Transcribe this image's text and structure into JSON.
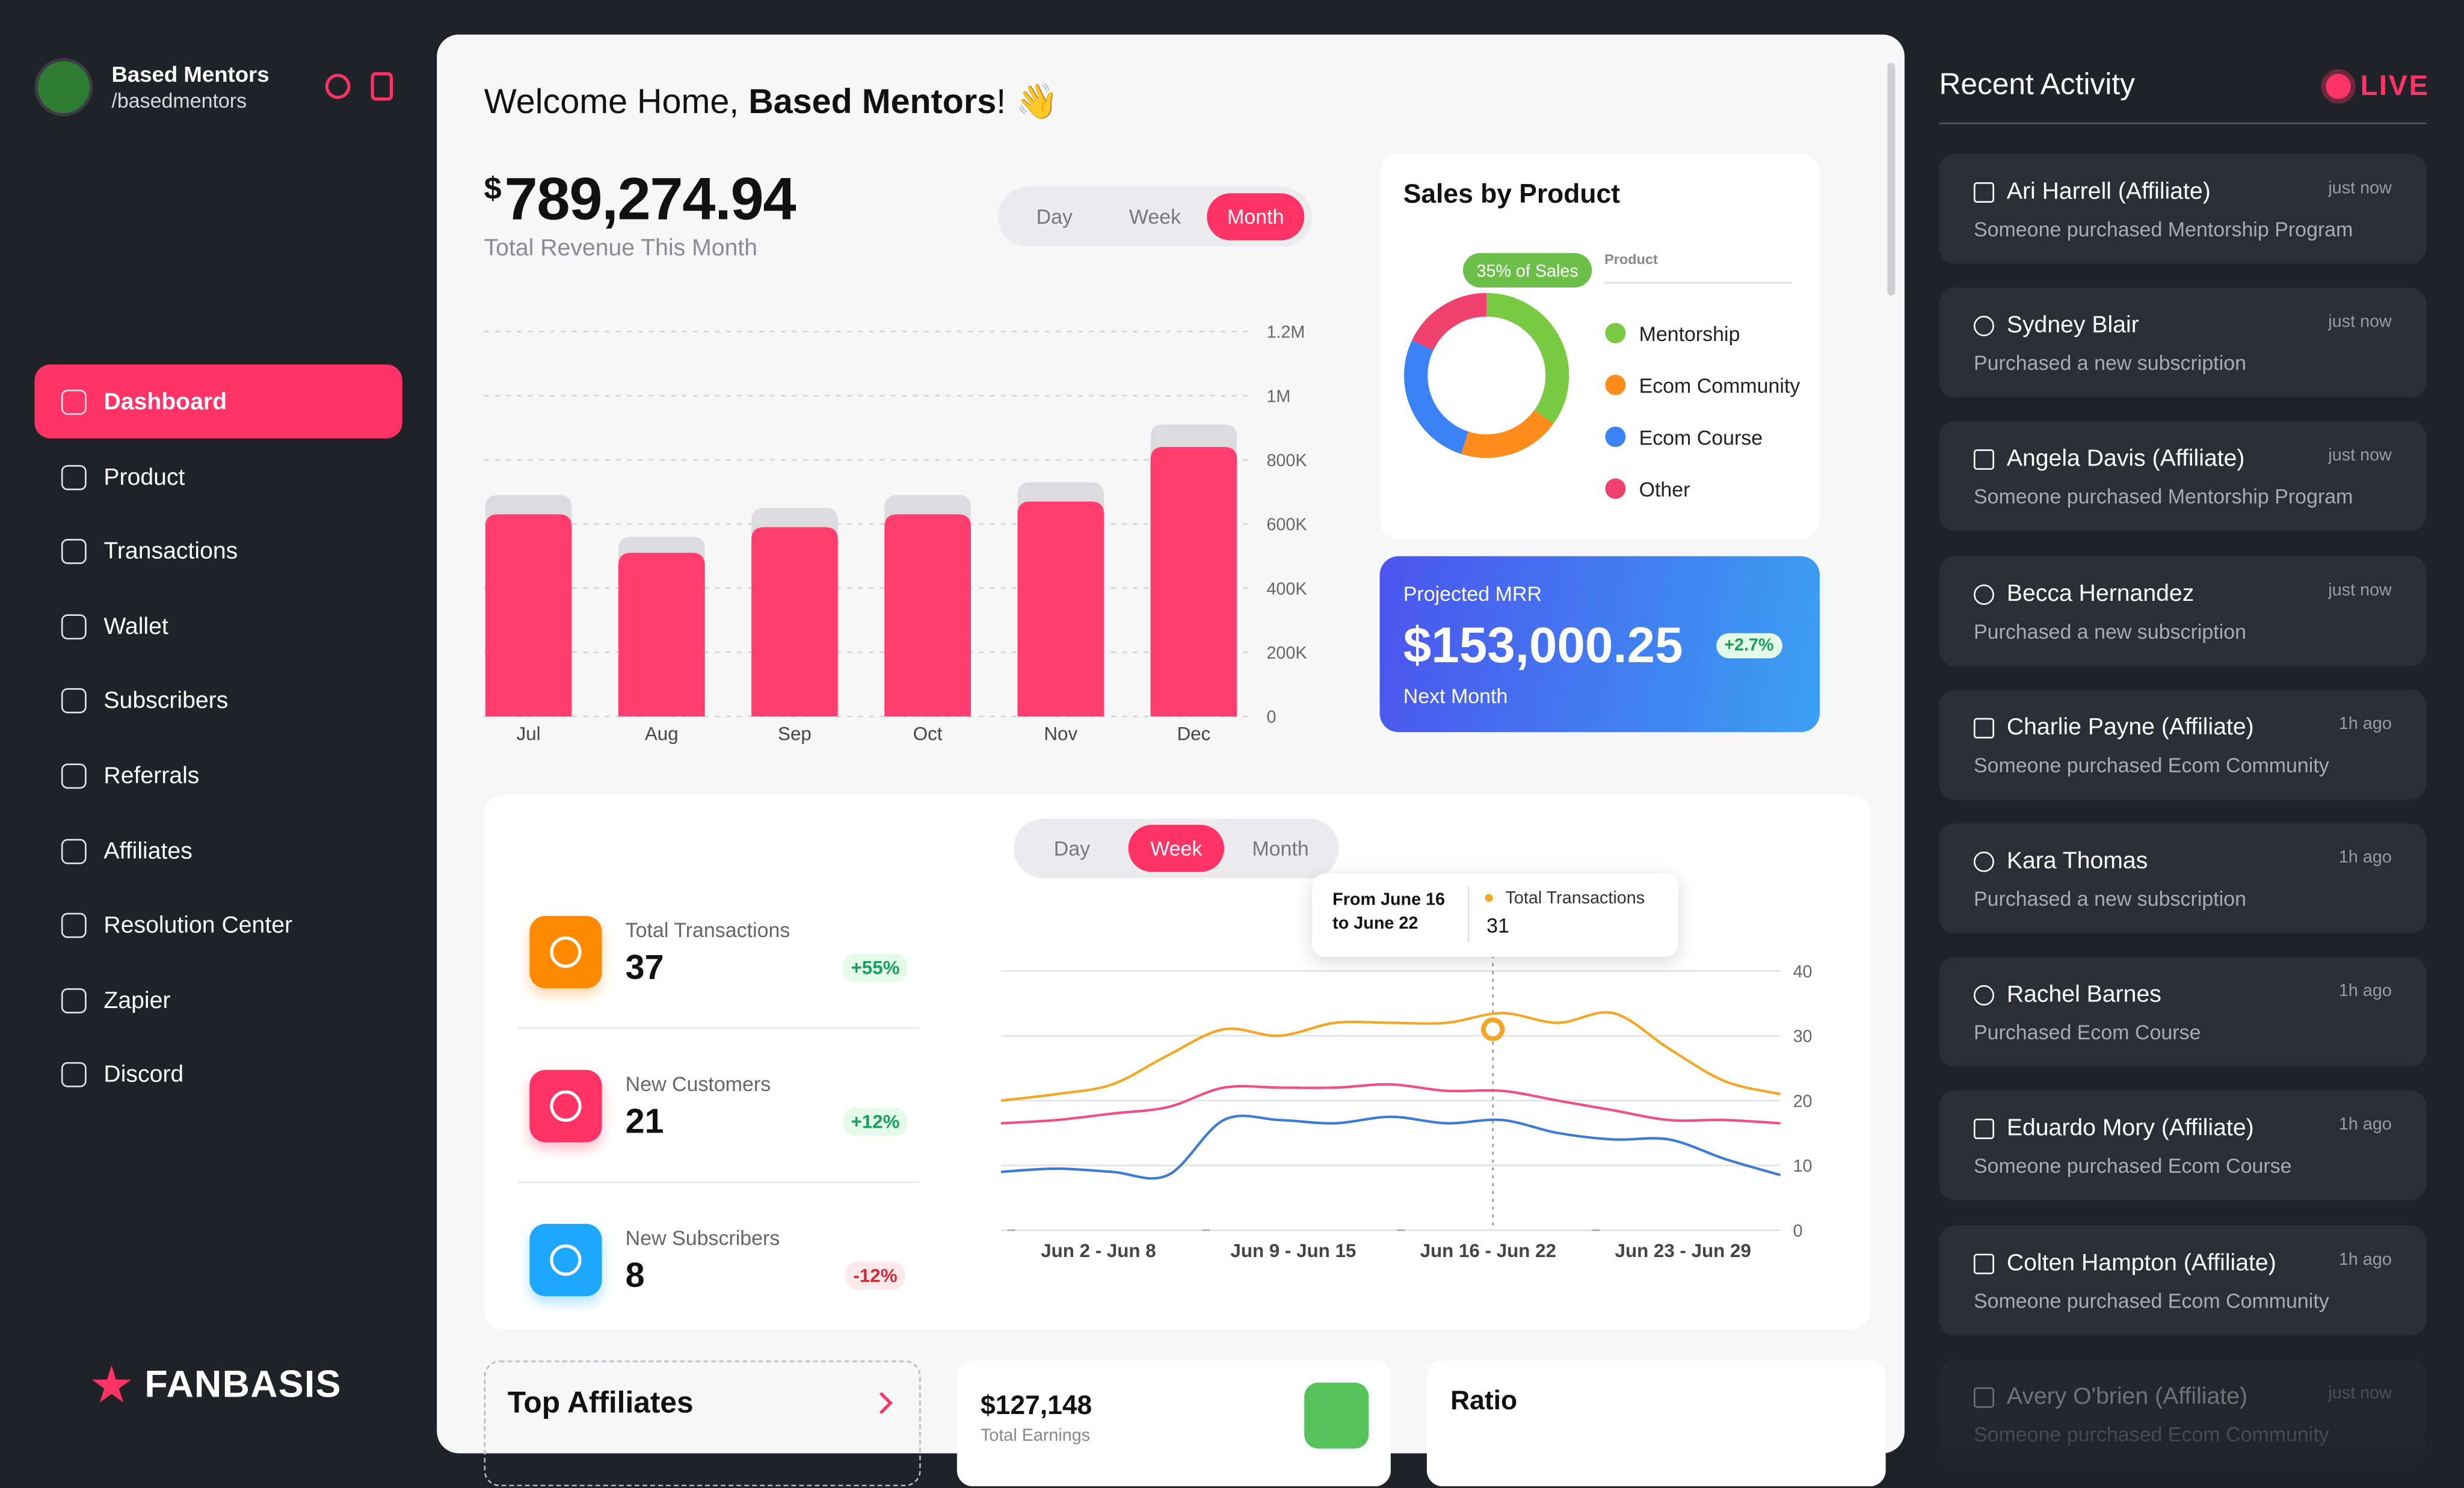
{
  "sidebar": {
    "profile": {
      "name": "Based Mentors",
      "handle": "/basedmentors"
    },
    "nav": [
      "Dashboard",
      "Product",
      "Transactions",
      "Wallet",
      "Subscribers",
      "Referrals",
      "Affiliates",
      "Resolution Center",
      "Zapier",
      "Discord"
    ],
    "brand": "FANBASIS"
  },
  "main": {
    "greeting": {
      "text": "Welcome Home, ",
      "name": "Based Mentors",
      "end": "! 👋"
    },
    "revenue": {
      "currency": "$",
      "amount": "789,274.94",
      "label": "Total Revenue This Month",
      "periods": [
        "Day",
        "Week",
        "Month"
      ]
    },
    "revenue_chart": {
      "type": "bar",
      "categories": [
        "Jul",
        "Aug",
        "Sep",
        "Oct",
        "Nov",
        "Dec"
      ],
      "series": [
        {
          "color": "#dcdcdf",
          "values": [
            690000,
            560000,
            650000,
            690000,
            730000,
            910000
          ]
        },
        {
          "color": "#ff3d6e",
          "values": [
            630000,
            510000,
            590000,
            630000,
            670000,
            840000
          ]
        }
      ],
      "ylim": [
        0,
        1200000
      ],
      "yticks": [
        0,
        {
          "value": 200000,
          "label": "200K"
        },
        {
          "value": 400000,
          "label": "400K"
        },
        {
          "value": 600000,
          "label": "600K"
        },
        {
          "value": 800000,
          "label": "800K"
        },
        {
          "value": 1000000,
          "label": "1M"
        },
        {
          "value": 1200000,
          "label": "1.2M"
        }
      ],
      "grid": true
    },
    "sales": {
      "title": "Sales by Product",
      "chart": {
        "type": "donut",
        "categories": [
          "Mentorship",
          "Ecom Community",
          "Ecom Course",
          "Other"
        ],
        "values": [
          35,
          20,
          27,
          18
        ],
        "colors": [
          "#7ac943",
          "#ff8c1a",
          "#3b82f6",
          "#f0406e"
        ],
        "annotation": "35% of Sales",
        "legend_title": "Product"
      }
    },
    "mrr": {
      "title": "Projected MRR",
      "amount": "$153,000.25",
      "change": "+2.7%",
      "period": "Next Month"
    },
    "activity": {
      "periods": [
        "Day",
        "Week",
        "Month"
      ],
      "stats": [
        {
          "label": "Total Transactions",
          "value": 37,
          "change": "+55%"
        },
        {
          "label": "New Customers",
          "value": 21,
          "change": "+12%"
        },
        {
          "label": "New Subscribers",
          "value": 8,
          "change": "-12%"
        }
      ],
      "chart": {
        "type": "line",
        "x": [
          0,
          2,
          4,
          6,
          8,
          10,
          12,
          14,
          16,
          18,
          20,
          22,
          24,
          26,
          28
        ],
        "xlim": [
          0,
          28
        ],
        "xticks": [
          {
            "value": 3.5,
            "label": "Jun 2 - Jun 8"
          },
          {
            "value": 10.5,
            "label": "Jun 9 - Jun 15"
          },
          {
            "value": 17.5,
            "label": "Jun 16 - Jun 22"
          },
          {
            "value": 24.5,
            "label": "Jun 23 - Jun 29"
          }
        ],
        "ylim": [
          0,
          40
        ],
        "yticks": [
          0,
          10,
          20,
          30,
          40
        ],
        "grid": true,
        "series": [
          {
            "color": "#f5a623",
            "values": [
              20,
              21,
              22.5,
              27,
              31,
              30,
              32,
              32,
              32,
              33.5,
              32,
              33.5,
              28,
              23,
              21
            ]
          },
          {
            "color": "#ef4f86",
            "values": [
              16.5,
              17,
              18,
              19,
              22,
              22,
              22,
              22.5,
              21.5,
              21.5,
              20,
              18.5,
              17,
              17,
              16.5
            ]
          },
          {
            "color": "#3a7bd5",
            "values": [
              9,
              9.5,
              9,
              8.5,
              17,
              17,
              16.5,
              17.5,
              16.5,
              17,
              15,
              14,
              14,
              11,
              8.5
            ]
          }
        ],
        "tooltip": {
          "range": [
            "From June 16",
            "to June 22"
          ],
          "label": "Total Transactions",
          "value": 31
        }
      }
    },
    "bottom": {
      "affiliates_title": "Top Affiliates",
      "earnings": "$127,148",
      "earnings_label": "Total Earnings",
      "ratio_title": "Ratio"
    }
  },
  "recent": {
    "title": "Recent Activity",
    "live": "LIVE",
    "items": [
      {
        "name": "Ari Harrell (Affiliate)",
        "text": "Someone purchased Mentorship Program",
        "time": "just now"
      },
      {
        "name": "Sydney Blair",
        "text": "Purchased a new subscription",
        "time": "just now"
      },
      {
        "name": "Angela Davis (Affiliate)",
        "text": "Someone purchased Mentorship Program",
        "time": "just now"
      },
      {
        "name": "Becca Hernandez",
        "text": "Purchased a new subscription",
        "time": "just now"
      },
      {
        "name": "Charlie Payne (Affiliate)",
        "text": "Someone purchased Ecom Community",
        "time": "1h ago"
      },
      {
        "name": "Kara Thomas",
        "text": "Purchased a new subscription",
        "time": "1h ago"
      },
      {
        "name": "Rachel Barnes",
        "text": "Purchased Ecom Course",
        "time": "1h ago"
      },
      {
        "name": "Eduardo Mory (Affiliate)",
        "text": "Someone purchased Ecom Course",
        "time": "1h ago"
      },
      {
        "name": "Colten Hampton (Affiliate)",
        "text": "Someone purchased Ecom Community",
        "time": "1h ago"
      },
      {
        "name": "Avery O'brien (Affiliate)",
        "text": "Someone purchased Ecom Community",
        "time": "just now"
      }
    ]
  }
}
